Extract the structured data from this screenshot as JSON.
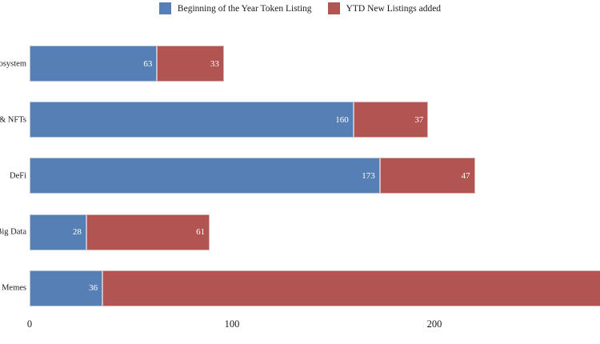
{
  "legend": {
    "items": [
      {
        "label": "Beginning of the Year Token Listing",
        "color": "#567fb6",
        "swatch_icon": "blue-square-swatch"
      },
      {
        "label": "YTD New Listings added",
        "color": "#b25451",
        "swatch_icon": "red-square-swatch"
      }
    ]
  },
  "chart_data": {
    "type": "bar",
    "orientation": "horizontal",
    "stacked": true,
    "title": "",
    "xlabel": "",
    "ylabel": "",
    "categories": [
      "cosystem",
      "s & NFTs",
      "DeFi",
      "Big Data",
      "Memes"
    ],
    "series": [
      {
        "name": "Beginning of the Year Token Listing",
        "color": "#567fb6",
        "values": [
          63,
          160,
          173,
          28,
          36
        ]
      },
      {
        "name": "YTD New Listings added",
        "color": "#b25451",
        "values": [
          33,
          37,
          47,
          61,
          null
        ]
      }
    ],
    "value_labels": {
      "color": "#ffffff",
      "position": "inside-end"
    },
    "x_ticks": [
      0,
      100,
      200
    ],
    "xlim_visible": [
      0,
      282
    ],
    "grid": false,
    "legend_position": "top-center",
    "notes": {
      "clipped_left_labels": "Category labels 'cosystem' and 's & NFTs' are cut off at the left edge of the screenshot.",
      "clipped_last_segment": "The red 'Memes' segment runs past the right edge of the image; its value label is not visible."
    }
  }
}
